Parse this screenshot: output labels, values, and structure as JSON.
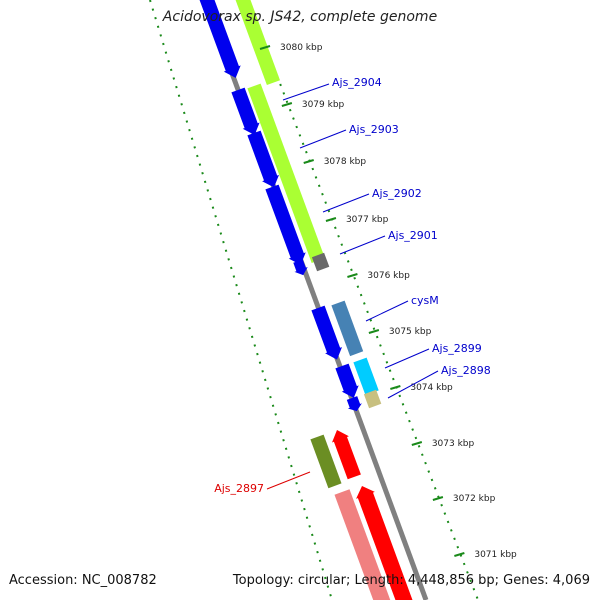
{
  "map": {
    "title": "Acidovorax sp. JS42, complete genome",
    "accession": "Accession: NC_008782",
    "summary": "Topology: circular; Length: 4,448,856 bp; Genes: 4,069",
    "scale_ticks": [
      {
        "label": "3080 kbp"
      },
      {
        "label": "3079 kbp"
      },
      {
        "label": "3078 kbp"
      },
      {
        "label": "3077 kbp"
      },
      {
        "label": "3076 kbp"
      },
      {
        "label": "3075 kbp"
      },
      {
        "label": "3074 kbp"
      },
      {
        "label": "3073 kbp"
      },
      {
        "label": "3072 kbp"
      },
      {
        "label": "3071 kbp"
      }
    ],
    "gene_labels": [
      {
        "name": "Ajs_2904",
        "color": "#0000cc"
      },
      {
        "name": "Ajs_2903",
        "color": "#0000cc"
      },
      {
        "name": "Ajs_2902",
        "color": "#0000cc"
      },
      {
        "name": "Ajs_2901",
        "color": "#0000cc"
      },
      {
        "name": "cysM",
        "color": "#0000cc"
      },
      {
        "name": "Ajs_2899",
        "color": "#0000cc"
      },
      {
        "name": "Ajs_2898",
        "color": "#0000cc"
      },
      {
        "name": "Ajs_2897",
        "color": "#dd0000"
      }
    ],
    "colors": {
      "backbone": "#808080",
      "gc_dots": "#1a8a1a",
      "forward_genes": "#0000ee",
      "reverse_genes": "#ff0000",
      "light_green_feature": "#aaff33",
      "steel_blue_feature": "#4682b4",
      "cyan_feature": "#00ccff",
      "olive_feature": "#6b8e23",
      "pink_feature": "#f08080",
      "khaki_feature": "#c8c080",
      "gray_feature": "#696969"
    }
  }
}
